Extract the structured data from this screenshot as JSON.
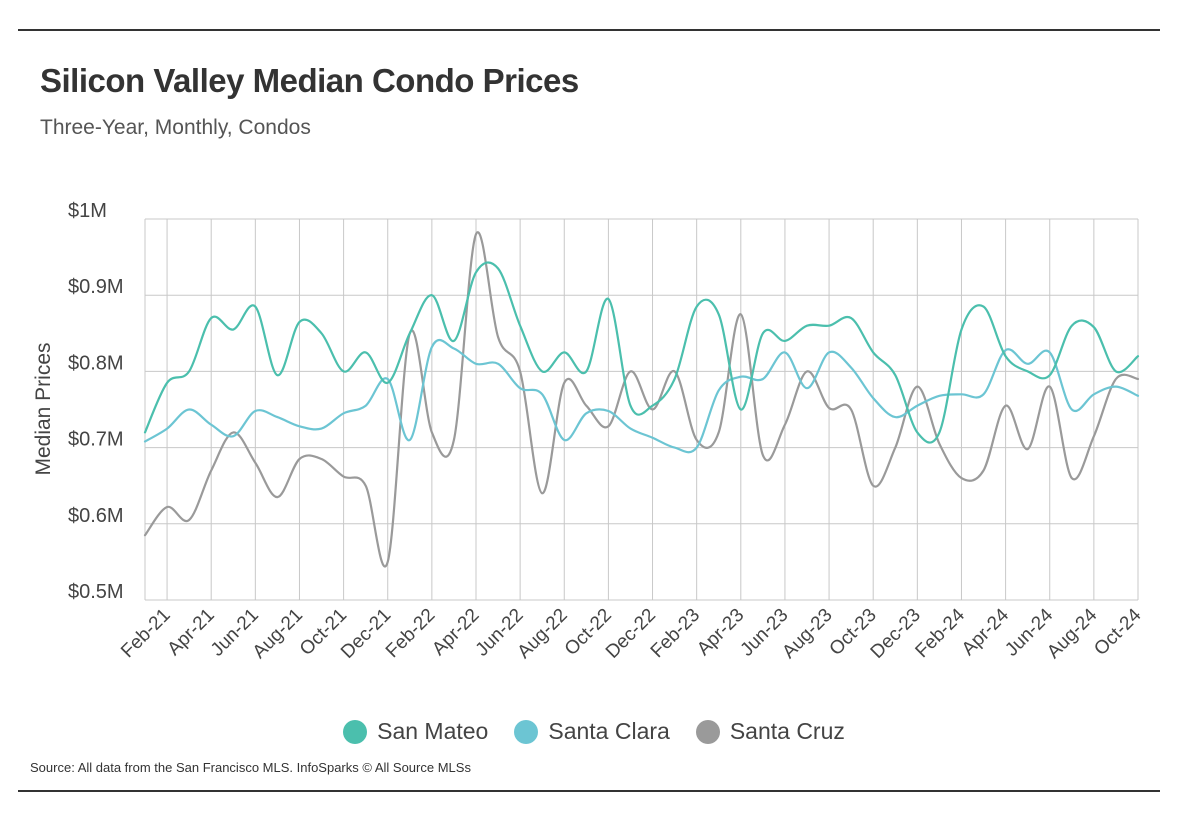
{
  "title": "Silicon Valley Median Condo Prices",
  "subtitle": "Three-Year, Monthly, Condos",
  "source": "Source:  All data from the San Francisco MLS. InfoSparks © All Source MLSs",
  "chart_data": {
    "type": "line",
    "title": "Silicon Valley Median Condo Prices",
    "subtitle": "Three-Year, Monthly, Condos",
    "xlabel": "",
    "ylabel": "Median Prices",
    "ylim": [
      500000,
      1000000
    ],
    "yticks": [
      500000,
      600000,
      700000,
      800000,
      900000,
      1000000
    ],
    "ytick_labels": [
      "$0.5M",
      "$0.6M",
      "$0.7M",
      "$0.8M",
      "$0.9M",
      "$1M"
    ],
    "x": [
      "Jan-21",
      "Feb-21",
      "Mar-21",
      "Apr-21",
      "May-21",
      "Jun-21",
      "Jul-21",
      "Aug-21",
      "Sep-21",
      "Oct-21",
      "Nov-21",
      "Dec-21",
      "Jan-22",
      "Feb-22",
      "Mar-22",
      "Apr-22",
      "May-22",
      "Jun-22",
      "Jul-22",
      "Aug-22",
      "Sep-22",
      "Oct-22",
      "Nov-22",
      "Dec-22",
      "Jan-23",
      "Feb-23",
      "Mar-23",
      "Apr-23",
      "May-23",
      "Jun-23",
      "Jul-23",
      "Aug-23",
      "Sep-23",
      "Oct-23",
      "Nov-23",
      "Dec-23",
      "Jan-24",
      "Feb-24",
      "Mar-24",
      "Apr-24",
      "May-24",
      "Jun-24",
      "Jul-24",
      "Aug-24",
      "Sep-24",
      "Oct-24"
    ],
    "xtick_labels": [
      "Feb-21",
      "Apr-21",
      "Jun-21",
      "Aug-21",
      "Oct-21",
      "Dec-21",
      "Feb-22",
      "Apr-22",
      "Jun-22",
      "Aug-22",
      "Oct-22",
      "Dec-22",
      "Feb-23",
      "Apr-23",
      "Jun-23",
      "Aug-23",
      "Oct-23",
      "Dec-23",
      "Feb-24",
      "Apr-24",
      "Jun-24",
      "Aug-24",
      "Oct-24"
    ],
    "grid": true,
    "legend": "bottom",
    "series": [
      {
        "name": "San Mateo",
        "color": "#4bbfad",
        "values": [
          720000,
          785000,
          800000,
          870000,
          855000,
          885000,
          795000,
          865000,
          850000,
          800000,
          825000,
          785000,
          850000,
          900000,
          840000,
          930000,
          935000,
          860000,
          800000,
          825000,
          800000,
          895000,
          755000,
          755000,
          790000,
          885000,
          875000,
          750000,
          850000,
          840000,
          860000,
          860000,
          870000,
          825000,
          795000,
          720000,
          720000,
          855000,
          885000,
          820000,
          800000,
          795000,
          860000,
          858000,
          800000,
          820000
        ]
      },
      {
        "name": "Santa Clara",
        "color": "#6cc5d3",
        "values": [
          708000,
          725000,
          750000,
          730000,
          715000,
          748000,
          740000,
          728000,
          725000,
          745000,
          755000,
          790000,
          710000,
          832000,
          830000,
          810000,
          810000,
          778000,
          770000,
          710000,
          745000,
          748000,
          725000,
          713000,
          700000,
          700000,
          775000,
          793000,
          790000,
          825000,
          778000,
          825000,
          805000,
          765000,
          740000,
          755000,
          768000,
          770000,
          770000,
          828000,
          810000,
          825000,
          750000,
          770000,
          780000,
          768000
        ]
      },
      {
        "name": "Santa Cruz",
        "color": "#9a9a9a",
        "values": [
          585000,
          622000,
          605000,
          670000,
          720000,
          680000,
          635000,
          685000,
          685000,
          662000,
          650000,
          550000,
          850000,
          720000,
          710000,
          980000,
          845000,
          800000,
          640000,
          785000,
          755000,
          728000,
          800000,
          750000,
          800000,
          710000,
          720000,
          875000,
          690000,
          730000,
          800000,
          752000,
          750000,
          650000,
          700000,
          780000,
          705000,
          660000,
          670000,
          755000,
          698000,
          780000,
          660000,
          715000,
          790000,
          790000
        ]
      }
    ]
  }
}
